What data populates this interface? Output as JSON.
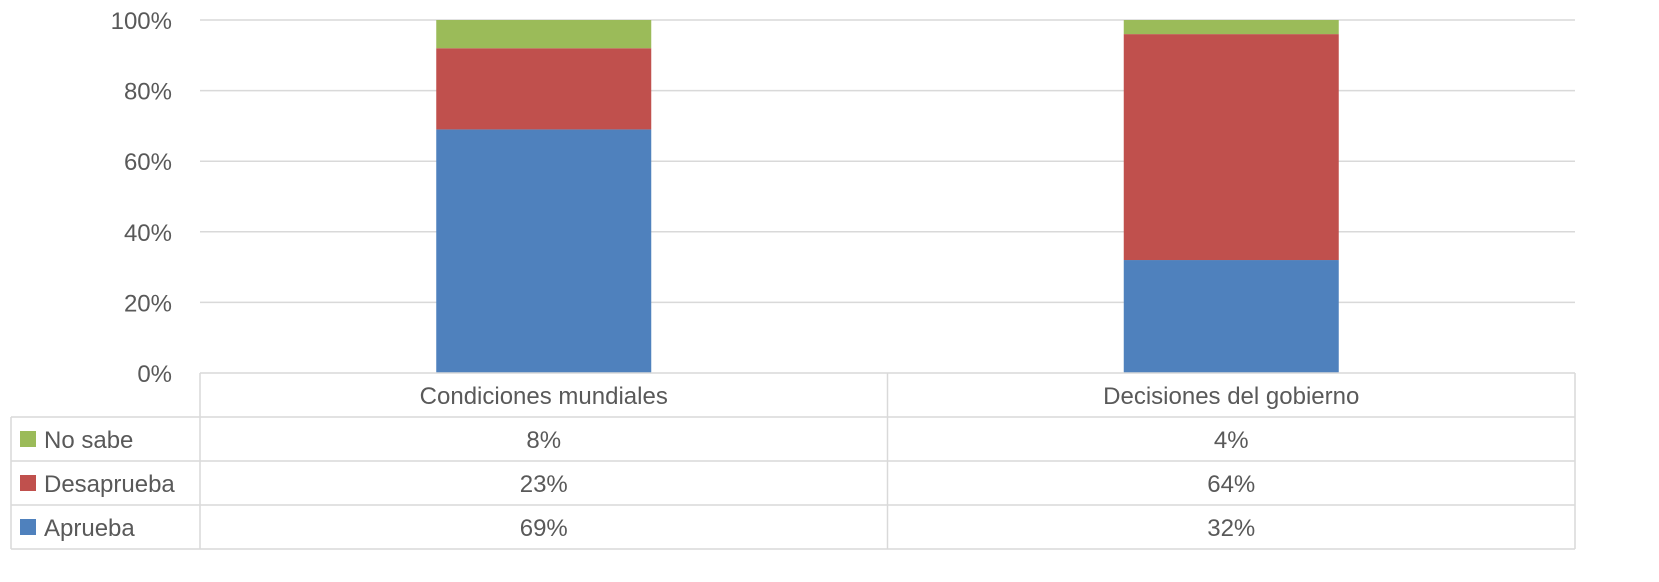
{
  "chart_data": {
    "type": "bar",
    "stacked": true,
    "percent_stacked": true,
    "categories": [
      "Condiciones mundiales",
      "Decisiones del gobierno"
    ],
    "series": [
      {
        "name": "No sabe",
        "values": [
          8,
          4
        ],
        "labels": [
          "8%",
          "4%"
        ],
        "color": "#9BBB59"
      },
      {
        "name": "Desaprueba",
        "values": [
          23,
          64
        ],
        "labels": [
          "23%",
          "64%"
        ],
        "color": "#C0504D"
      },
      {
        "name": "Aprueba",
        "values": [
          69,
          32
        ],
        "labels": [
          "69%",
          "32%"
        ],
        "color": "#4F81BD"
      }
    ],
    "yticks": [
      "0%",
      "20%",
      "40%",
      "60%",
      "80%",
      "100%"
    ],
    "ylim": [
      0,
      100
    ],
    "grid": true,
    "legend": "data-table",
    "title": "",
    "xlabel": "",
    "ylabel": ""
  }
}
